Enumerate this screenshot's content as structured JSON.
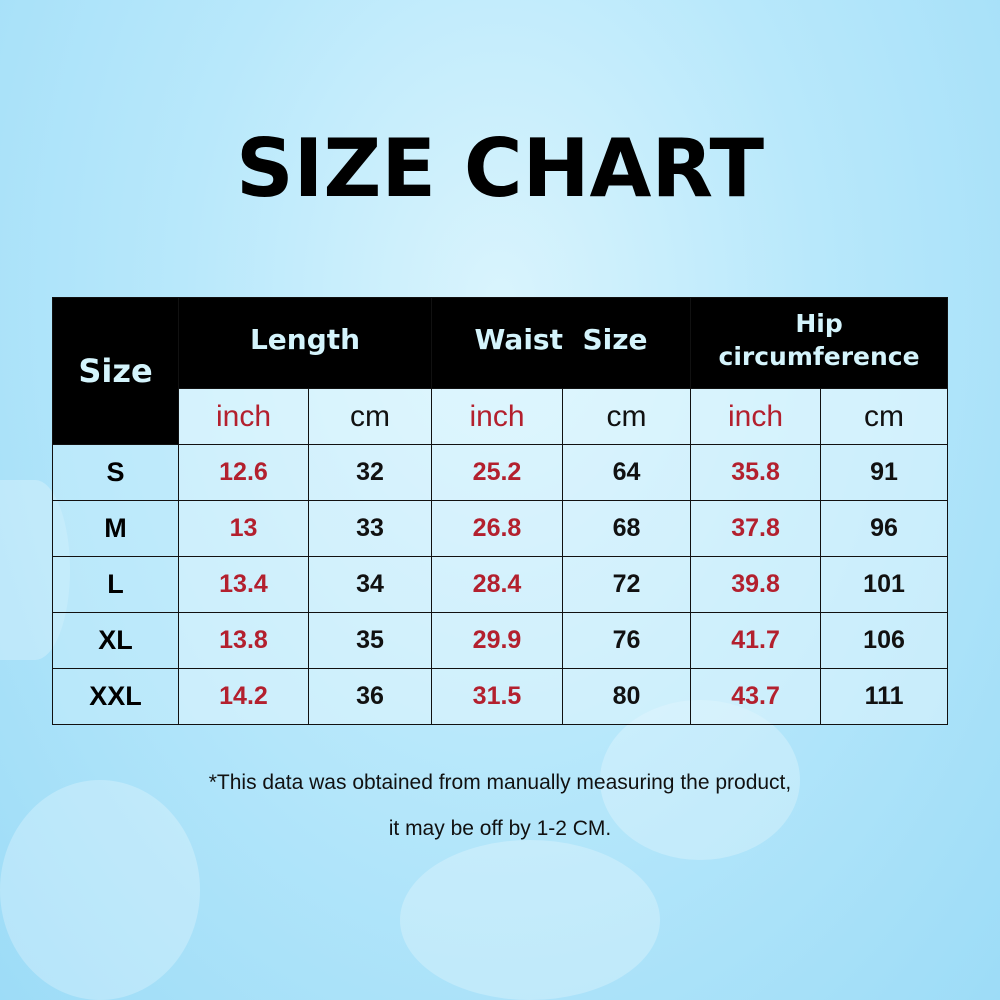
{
  "title": "SIZE CHART",
  "table": {
    "size_header": "Size",
    "groups": [
      "Length",
      "Waist  Size",
      "Hip circumference"
    ],
    "units": [
      "inch",
      "cm",
      "inch",
      "cm",
      "inch",
      "cm"
    ],
    "rows": [
      {
        "size": "S",
        "values": [
          "12.6",
          "32",
          "25.2",
          "64",
          "35.8",
          "91"
        ]
      },
      {
        "size": "M",
        "values": [
          "13",
          "33",
          "26.8",
          "68",
          "37.8",
          "96"
        ]
      },
      {
        "size": "L",
        "values": [
          "13.4",
          "34",
          "28.4",
          "72",
          "39.8",
          "101"
        ]
      },
      {
        "size": "XL",
        "values": [
          "13.8",
          "35",
          "29.9",
          "76",
          "41.7",
          "106"
        ]
      },
      {
        "size": "XXL",
        "values": [
          "14.2",
          "36",
          "31.5",
          "80",
          "43.7",
          "111"
        ]
      }
    ]
  },
  "note": {
    "line1": "*This data was obtained from manually measuring the product,",
    "line2": "it may be off by 1-2 CM."
  },
  "colors": {
    "inch": "#b3202e",
    "cm": "#111111",
    "header_bg": "#000000",
    "header_text": "#d4f4fc"
  }
}
